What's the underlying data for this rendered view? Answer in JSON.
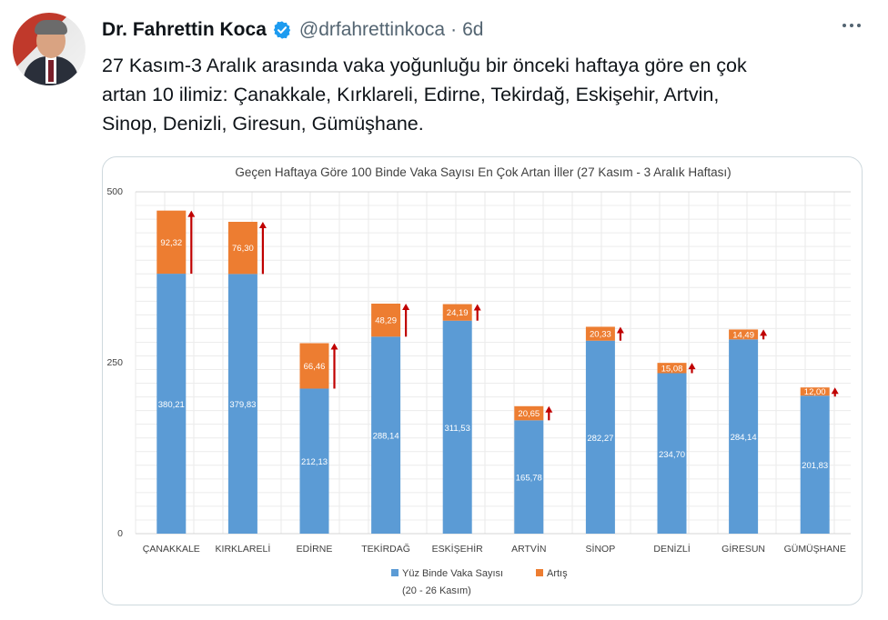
{
  "tweet": {
    "author_name": "Dr. Fahrettin Koca",
    "handle": "@drfahrettinkoca",
    "separator": "·",
    "time": "6d",
    "text": "27 Kasım-3 Aralık arasında vaka yoğunluğu bir önceki haftaya göre en çok\nartan 10 ilimiz: Çanakkale, Kırklareli, Edirne, Tekirdağ, Eskişehir, Artvin,\nSinop, Denizli, Giresun, Gümüşhane."
  },
  "colors": {
    "verified": "#1d9bf0",
    "base_series": "#5b9bd5",
    "increase_series": "#ed7d31",
    "arrow": "#c00000"
  },
  "icons": {
    "verified": "verified-badge-icon",
    "more": "more-options-icon"
  },
  "chart_data": {
    "type": "bar",
    "stacked": true,
    "title": "Geçen Haftaya Göre 100 Binde Vaka Sayısı En Çok Artan İller (27 Kasım - 3 Aralık Haftası)",
    "categories": [
      "ÇANAKKALE",
      "KIRKLARELİ",
      "EDİRNE",
      "TEKİRDAĞ",
      "ESKİŞEHİR",
      "ARTVİN",
      "SİNOP",
      "DENİZLİ",
      "GİRESUN",
      "GÜMÜŞHANE"
    ],
    "series": [
      {
        "name": "Yüz Binde Vaka Sayısı",
        "values": [
          380.21,
          379.83,
          212.13,
          288.14,
          311.53,
          165.78,
          282.27,
          234.7,
          284.14,
          201.83
        ]
      },
      {
        "name": "Artış",
        "values": [
          92.32,
          76.3,
          66.46,
          48.29,
          24.19,
          20.65,
          20.33,
          15.08,
          14.49,
          12.0
        ]
      }
    ],
    "base_labels": [
      "380,21",
      "379,83",
      "212,13",
      "288,14",
      "311,53",
      "165,78",
      "282,27",
      "234,70",
      "284,14",
      "201,83"
    ],
    "increase_labels": [
      "92,32",
      "76,30",
      "66,46",
      "48,29",
      "24,19",
      "20,65",
      "20,33",
      "15,08",
      "14,49",
      "12,00"
    ],
    "legend_note": "(20 - 26 Kasım)",
    "yticks": [
      "0",
      "250",
      "500"
    ],
    "ylim": [
      0,
      500
    ],
    "grid": true,
    "legend_position": "bottom"
  }
}
